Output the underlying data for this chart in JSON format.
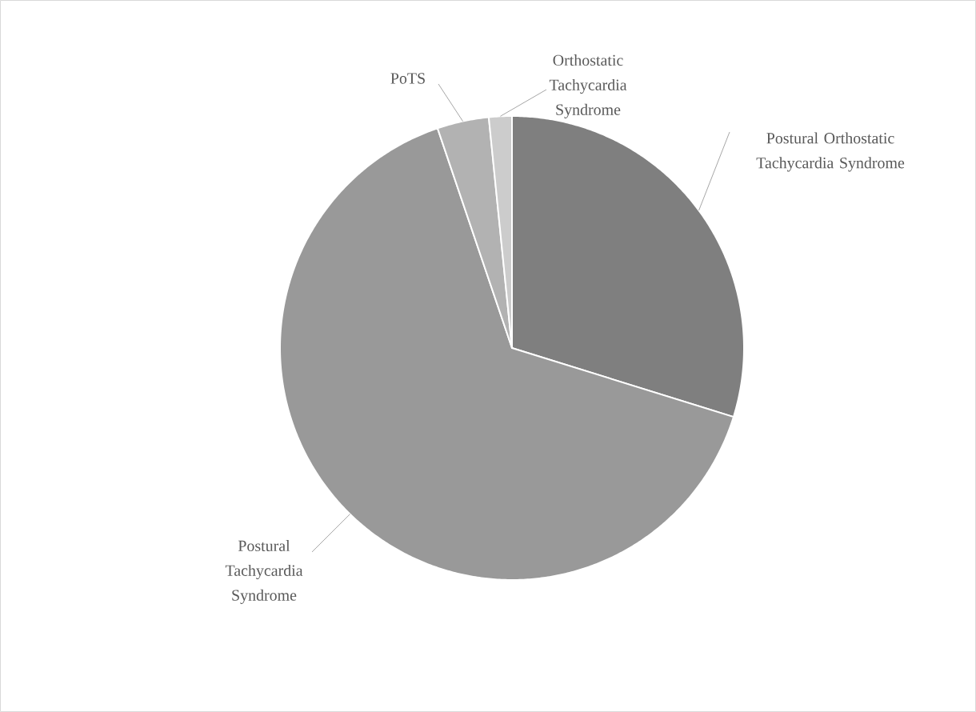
{
  "chart_data": {
    "type": "pie",
    "categories": [
      "Postural Orthostatic Tachycardia Syndrome",
      "Postural Tachycardia Syndrome",
      "PoTS",
      "Orthostatic Tachycardia Syndrome"
    ],
    "values": [
      29.8,
      65.0,
      3.6,
      1.6
    ],
    "colors": [
      "#7f7f7f",
      "#999999",
      "#b2b2b2",
      "#cccccc"
    ]
  }
}
